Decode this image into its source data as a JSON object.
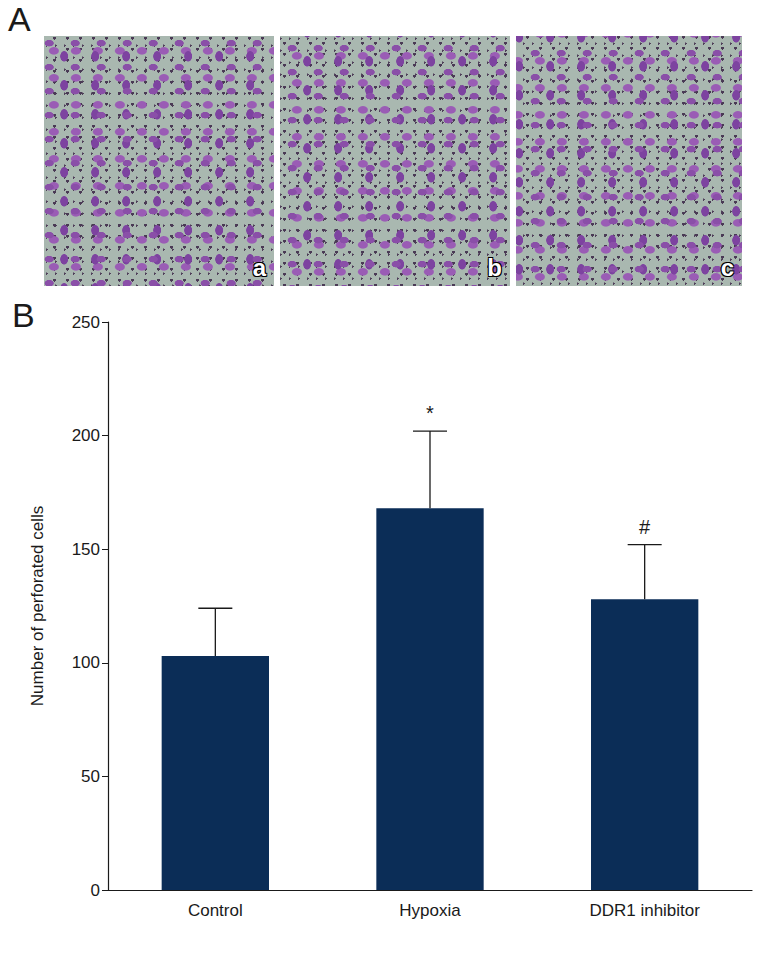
{
  "panel_labels": [
    "A",
    "B"
  ],
  "images": {
    "labels": [
      "a",
      "b",
      "c"
    ]
  },
  "chart_data": {
    "type": "bar",
    "y_label": "Number of perforated cells",
    "categories": [
      "Control",
      "Hypoxia",
      "DDR1 inhibitor"
    ],
    "values": [
      103,
      168,
      128
    ],
    "errors": [
      21,
      34,
      24
    ],
    "annotations": [
      null,
      "*",
      "#"
    ],
    "color": "#0b2d57",
    "ylim": [
      0,
      250
    ],
    "yticks": [
      0,
      50,
      100,
      150,
      200,
      250
    ],
    "grid": false
  }
}
